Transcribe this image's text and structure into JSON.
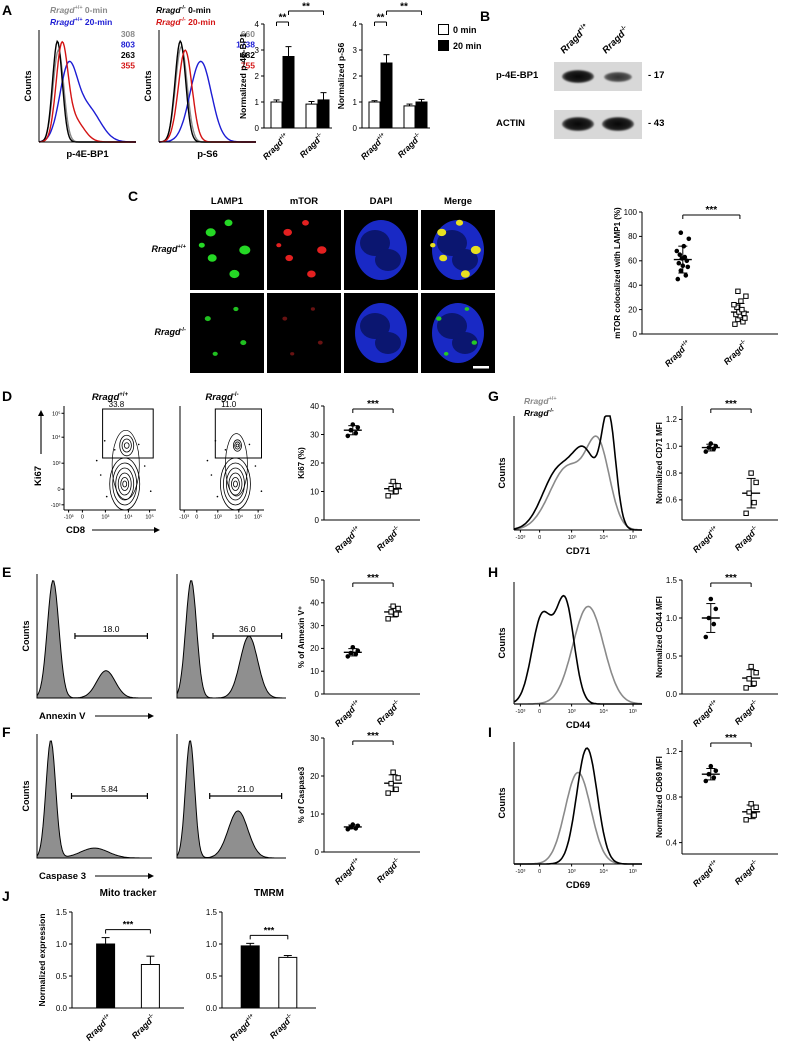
{
  "panel_labels": {
    "A": "A",
    "B": "B",
    "C": "C",
    "D": "D",
    "E": "E",
    "F": "F",
    "G": "G",
    "H": "H",
    "I": "I",
    "J": "J"
  },
  "panelA": {
    "legend_left": [
      {
        "label": "Rragd+/+ 0-min",
        "color": "#8a8a8a"
      },
      {
        "label": "Rragd+/+ 20-min",
        "color": "#1d1dd4"
      }
    ],
    "legend_right": [
      {
        "label": "Rragd-/- 0-min",
        "color": "#000000"
      },
      {
        "label": "Rragd-/- 20-min",
        "color": "#d41414"
      }
    ],
    "bar_legend": [
      {
        "label": "0 min",
        "fill": "#ffffff"
      },
      {
        "label": "20 min",
        "fill": "#000000"
      }
    ]
  },
  "panelB": {
    "col_labels": [
      "Rragd+/+",
      "Rragd-/-"
    ],
    "rows": [
      {
        "label": "p-4E-BP1",
        "mw": "- 17"
      },
      {
        "label": "ACTIN",
        "mw": "- 43"
      }
    ]
  },
  "panelC": {
    "col_headers": [
      "LAMP1",
      "mTOR",
      "DAPI",
      "Merge"
    ],
    "row_labels": [
      "Rragd+/+",
      "Rragd-/-"
    ]
  },
  "panelG": {
    "legend": [
      {
        "label": "Rragd+/+",
        "color": "#8a8a8a"
      },
      {
        "label": "Rragd-/-",
        "color": "#000000"
      }
    ]
  },
  "chart_data": [
    {
      "id": "a_hist_left",
      "type": "overlay_hist",
      "xlabel": "p-4E-BP1",
      "ylabel": "Counts",
      "series": [
        {
          "color": "#8a8a8a",
          "mfi": "308",
          "peaks": [
            {
              "m": 0.2,
              "w": 0.055,
              "h": 0.82
            }
          ]
        },
        {
          "color": "#1d1dd4",
          "mfi": "803",
          "peaks": [
            {
              "m": 0.3,
              "w": 0.09,
              "h": 0.62
            },
            {
              "m": 0.5,
              "w": 0.13,
              "h": 0.3
            }
          ]
        },
        {
          "color": "#000000",
          "mfi": "263",
          "peaks": [
            {
              "m": 0.19,
              "w": 0.05,
              "h": 0.9
            }
          ]
        },
        {
          "color": "#d41414",
          "mfi": "355",
          "peaks": [
            {
              "m": 0.235,
              "w": 0.06,
              "h": 0.8
            },
            {
              "m": 0.36,
              "w": 0.1,
              "h": 0.2
            }
          ]
        }
      ]
    },
    {
      "id": "a_hist_right",
      "type": "overlay_hist",
      "xlabel": "p-S6",
      "ylabel": "Counts",
      "series": [
        {
          "color": "#8a8a8a",
          "mfi": "660",
          "peaks": [
            {
              "m": 0.23,
              "w": 0.06,
              "h": 0.85
            }
          ]
        },
        {
          "color": "#1d1dd4",
          "mfi": "1738",
          "peaks": [
            {
              "m": 0.43,
              "w": 0.11,
              "h": 0.72
            }
          ]
        },
        {
          "color": "#000000",
          "mfi": "682",
          "peaks": [
            {
              "m": 0.22,
              "w": 0.055,
              "h": 0.9
            }
          ]
        },
        {
          "color": "#d41414",
          "mfi": "755",
          "peaks": [
            {
              "m": 0.27,
              "w": 0.07,
              "h": 0.82
            }
          ]
        }
      ]
    },
    {
      "id": "a_bar1",
      "type": "grouped_bar",
      "ylabel": "Normalized p-4E-BP1",
      "ylim": [
        0,
        4
      ],
      "yticks": [
        "0",
        "1",
        "2",
        "3",
        "4"
      ],
      "categories": [
        "Rragd+/+",
        "Rragd-/-"
      ],
      "series": [
        {
          "name": "0 min",
          "fill": "#ffffff",
          "values": [
            1.0,
            0.92
          ],
          "errors": [
            0.08,
            0.1
          ]
        },
        {
          "name": "20 min",
          "fill": "#000000",
          "values": [
            2.75,
            1.08
          ],
          "errors": [
            0.38,
            0.28
          ]
        }
      ],
      "sig": [
        {
          "slots": [
            0,
            1
          ],
          "label": "**"
        },
        {
          "slots": [
            1,
            3
          ],
          "label": "**"
        }
      ]
    },
    {
      "id": "a_bar2",
      "type": "grouped_bar",
      "ylabel": "Normalized p-S6",
      "ylim": [
        0,
        4
      ],
      "yticks": [
        "0",
        "1",
        "2",
        "3",
        "4"
      ],
      "categories": [
        "Rragd+/+",
        "Rragd-/-"
      ],
      "series": [
        {
          "name": "0 min",
          "fill": "#ffffff",
          "values": [
            1.0,
            0.85
          ],
          "errors": [
            0.05,
            0.07
          ]
        },
        {
          "name": "20 min",
          "fill": "#000000",
          "values": [
            2.5,
            1.0
          ],
          "errors": [
            0.32,
            0.1
          ]
        }
      ],
      "sig": [
        {
          "slots": [
            0,
            1
          ],
          "label": "**"
        },
        {
          "slots": [
            1,
            3
          ],
          "label": "**"
        }
      ]
    },
    {
      "id": "c_scatter",
      "type": "scatter2",
      "ylabel": "mTOR colocalized with LAMP1 (%)",
      "lmargin": 30,
      "ylim": [
        0,
        100
      ],
      "yticks": [
        "0",
        "20",
        "40",
        "60",
        "80",
        "100"
      ],
      "sig": "***",
      "groups": [
        {
          "label": "Rragd+/+",
          "marker": "dot",
          "mean": 61,
          "sd": 11,
          "points": [
            45,
            48,
            52,
            55,
            56,
            58,
            60,
            62,
            63,
            65,
            68,
            72,
            78,
            83
          ]
        },
        {
          "label": "Rragd-/-",
          "marker": "square",
          "mean": 18,
          "sd": 7,
          "points": [
            8,
            10,
            12,
            13,
            15,
            16,
            17,
            18,
            20,
            22,
            24,
            27,
            31,
            35
          ]
        }
      ]
    },
    {
      "id": "d_flow1",
      "type": "contour",
      "title": "Rragd+/+",
      "gate_value": "33.8",
      "show_y": true,
      "gate_frac": 0.45,
      "xlabel": "CD8",
      "ylabel": "Ki67",
      "xticks": [
        "-10³",
        "0",
        "10³",
        "10⁴",
        "10⁵"
      ],
      "yticks": [
        "-10³",
        "0",
        "10³",
        "10⁴",
        "10⁵"
      ]
    },
    {
      "id": "d_flow2",
      "type": "contour",
      "title": "Rragd-/-",
      "gate_value": "11.0",
      "show_y": false,
      "gate_frac": 0.12,
      "xticks": [
        "-10³",
        "0",
        "10³",
        "10⁴",
        "10⁵"
      ],
      "yticks": [
        "-10³",
        "0",
        "10³",
        "10⁴",
        "10⁵"
      ]
    },
    {
      "id": "d_scatter",
      "type": "scatter2",
      "ylabel": "Ki67 (%)",
      "ylim": [
        0,
        40
      ],
      "yticks": [
        "0",
        "10",
        "20",
        "30",
        "40"
      ],
      "sig": "***",
      "groups": [
        {
          "label": "Rragd+/+",
          "marker": "dot",
          "mean": 31.5,
          "sd": 1.6,
          "points": [
            29.5,
            30.5,
            31.5,
            32.5,
            33.5
          ]
        },
        {
          "label": "Rragd-/-",
          "marker": "square",
          "mean": 11,
          "sd": 1.9,
          "points": [
            8.5,
            10,
            11,
            12,
            13.5
          ]
        }
      ]
    },
    {
      "id": "e_hist1",
      "type": "filled_hist",
      "xlabel": "Annexin V",
      "ylabel": "Counts",
      "gate_label": "18.0",
      "gate_from": 0.33,
      "gate_to": 0.96,
      "peaks": [
        {
          "m": 0.14,
          "w": 0.05,
          "h": 0.95
        },
        {
          "m": 0.6,
          "w": 0.08,
          "h": 0.22
        }
      ]
    },
    {
      "id": "e_hist2",
      "type": "filled_hist",
      "gate_label": "36.0",
      "gate_from": 0.33,
      "gate_to": 0.96,
      "peaks": [
        {
          "m": 0.13,
          "w": 0.05,
          "h": 0.95
        },
        {
          "m": 0.66,
          "w": 0.08,
          "h": 0.5
        }
      ]
    },
    {
      "id": "e_scatter",
      "type": "scatter2",
      "ylabel": "% of Annexin V⁺",
      "ylim": [
        0,
        50
      ],
      "yticks": [
        "0",
        "10",
        "20",
        "30",
        "40",
        "50"
      ],
      "sig": "***",
      "groups": [
        {
          "label": "Rragd+/+",
          "marker": "dot",
          "mean": 18.3,
          "sd": 1.6,
          "points": [
            16.5,
            17.5,
            18,
            19,
            20.5
          ]
        },
        {
          "label": "Rragd-/-",
          "marker": "square",
          "mean": 36,
          "sd": 2.2,
          "points": [
            33,
            35,
            36,
            37.5,
            38.5
          ]
        }
      ]
    },
    {
      "id": "f_hist1",
      "type": "filled_hist",
      "xlabel": "Caspase 3",
      "ylabel": "Counts",
      "gate_label": "5.84",
      "gate_from": 0.3,
      "gate_to": 0.96,
      "peaks": [
        {
          "m": 0.12,
          "w": 0.042,
          "h": 0.95
        },
        {
          "m": 0.5,
          "w": 0.12,
          "h": 0.08
        }
      ]
    },
    {
      "id": "f_hist2",
      "type": "filled_hist",
      "gate_label": "21.0",
      "gate_from": 0.3,
      "gate_to": 0.96,
      "peaks": [
        {
          "m": 0.12,
          "w": 0.042,
          "h": 0.95
        },
        {
          "m": 0.56,
          "w": 0.09,
          "h": 0.38
        }
      ]
    },
    {
      "id": "f_scatter",
      "type": "scatter2",
      "ylabel": "% of Caspase3",
      "ylim": [
        0,
        30
      ],
      "yticks": [
        "0",
        "10",
        "20",
        "30"
      ],
      "sig": "***",
      "groups": [
        {
          "label": "Rragd+/+",
          "marker": "dot",
          "mean": 6.6,
          "sd": 0.5,
          "points": [
            6,
            6.2,
            6.5,
            6.9,
            7.2
          ]
        },
        {
          "label": "Rragd-/-",
          "marker": "square",
          "mean": 18.1,
          "sd": 2.2,
          "points": [
            15.5,
            16.5,
            18,
            19.5,
            21
          ]
        }
      ]
    },
    {
      "id": "g_hist",
      "type": "line_hist2",
      "xlabel": "CD71",
      "ylabel": "Counts",
      "legend_space": true,
      "xticks": [
        "-10³",
        "0",
        "10³",
        "10⁴",
        "10⁵"
      ],
      "series": [
        {
          "color": "#8a8a8a",
          "peaks": [
            {
              "m": 0.42,
              "w": 0.14,
              "h": 0.55
            },
            {
              "m": 0.66,
              "w": 0.09,
              "h": 0.68
            }
          ]
        },
        {
          "color": "#000000",
          "peaks": [
            {
              "m": 0.34,
              "w": 0.12,
              "h": 0.5
            },
            {
              "m": 0.56,
              "w": 0.1,
              "h": 0.62
            },
            {
              "m": 0.74,
              "w": 0.055,
              "h": 0.92
            }
          ]
        }
      ]
    },
    {
      "id": "g_scatter",
      "type": "scatter2",
      "ylabel": "Normalized CD71 MFI",
      "ylim": [
        0.45,
        1.3
      ],
      "yticks": [
        "0.6",
        "0.8",
        "1.0",
        "1.2"
      ],
      "sig": "***",
      "groups": [
        {
          "label": "Rragd+/+",
          "marker": "dot",
          "mean": 0.99,
          "sd": 0.025,
          "points": [
            0.96,
            0.98,
            0.99,
            1.0,
            1.02
          ]
        },
        {
          "label": "Rragd-/-",
          "marker": "square",
          "mean": 0.65,
          "sd": 0.11,
          "points": [
            0.5,
            0.58,
            0.65,
            0.73,
            0.8
          ]
        }
      ]
    },
    {
      "id": "h_hist",
      "type": "line_hist2",
      "xlabel": "CD44",
      "ylabel": "Counts",
      "xticks": [
        "-10³",
        "0",
        "10³",
        "10⁴",
        "10⁵"
      ],
      "series": [
        {
          "color": "#8a8a8a",
          "peaks": [
            {
              "m": 0.58,
              "w": 0.12,
              "h": 0.8
            }
          ]
        },
        {
          "color": "#000000",
          "peaks": [
            {
              "m": 0.22,
              "w": 0.08,
              "h": 0.72
            },
            {
              "m": 0.4,
              "w": 0.07,
              "h": 0.82
            }
          ]
        }
      ]
    },
    {
      "id": "h_scatter",
      "type": "scatter2",
      "ylabel": "Normalized CD44 MFI",
      "ylim": [
        0,
        1.5
      ],
      "yticks": [
        "0.0",
        "0.5",
        "1.0",
        "1.5"
      ],
      "sig": "***",
      "groups": [
        {
          "label": "Rragd+/+",
          "marker": "dot",
          "mean": 1.0,
          "sd": 0.19,
          "points": [
            0.75,
            0.92,
            1.0,
            1.12,
            1.25
          ]
        },
        {
          "label": "Rragd-/-",
          "marker": "square",
          "mean": 0.21,
          "sd": 0.11,
          "points": [
            0.08,
            0.14,
            0.2,
            0.28,
            0.36
          ]
        }
      ]
    },
    {
      "id": "i_hist",
      "type": "line_hist2",
      "xlabel": "CD69",
      "ylabel": "Counts",
      "xticks": [
        "-10³",
        "0",
        "10³",
        "10⁴",
        "10⁵"
      ],
      "series": [
        {
          "color": "#8a8a8a",
          "peaks": [
            {
              "m": 0.5,
              "w": 0.1,
              "h": 0.75
            }
          ]
        },
        {
          "color": "#000000",
          "peaks": [
            {
              "m": 0.57,
              "w": 0.08,
              "h": 0.95
            }
          ]
        }
      ]
    },
    {
      "id": "i_scatter",
      "type": "scatter2",
      "ylabel": "Normalized CD69 MFI",
      "ylim": [
        0.3,
        1.3
      ],
      "yticks": [
        "0.4",
        "0.8",
        "1.2"
      ],
      "sig": "***",
      "groups": [
        {
          "label": "Rragd+/+",
          "marker": "dot",
          "mean": 1.0,
          "sd": 0.05,
          "points": [
            0.94,
            0.97,
            1.0,
            1.03,
            1.07
          ]
        },
        {
          "label": "Rragd-/-",
          "marker": "square",
          "mean": 0.67,
          "sd": 0.06,
          "points": [
            0.6,
            0.64,
            0.67,
            0.71,
            0.74
          ]
        }
      ]
    },
    {
      "id": "j_bar1",
      "type": "bar2",
      "title": "Mito tracker",
      "ylabel": "Normalized expression",
      "ylim": [
        0,
        1.5
      ],
      "yticks": [
        "0.0",
        "0.5",
        "1.0",
        "1.5"
      ],
      "sig": "***",
      "bars": [
        {
          "label": "Rragd+/+",
          "fill": "#000000",
          "value": 1.0,
          "err": 0.1
        },
        {
          "label": "Rragd-/-",
          "fill": "#ffffff",
          "value": 0.68,
          "err": 0.13
        }
      ]
    },
    {
      "id": "j_bar2",
      "type": "bar2",
      "title": "TMRM",
      "ylim": [
        0,
        1.5
      ],
      "yticks": [
        "0.0",
        "0.5",
        "1.0",
        "1.5"
      ],
      "sig": "***",
      "bars": [
        {
          "label": "Rragd+/+",
          "fill": "#000000",
          "value": 0.97,
          "err": 0.04
        },
        {
          "label": "Rragd-/-",
          "fill": "#ffffff",
          "value": 0.79,
          "err": 0.03
        }
      ]
    }
  ]
}
